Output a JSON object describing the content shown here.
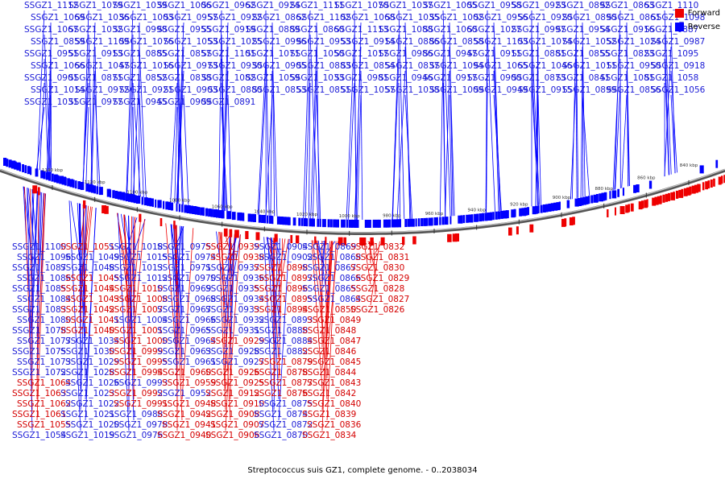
{
  "colors": {
    "forward": "#ee0000",
    "reverse": "#0000ff"
  },
  "legend": [
    {
      "label": "Forward",
      "color": "#ee0000"
    },
    {
      "label": "Reverse",
      "color": "#0000ff"
    }
  ],
  "caption": "Streptococcus suis GZ1, complete genome. - 0..2038034",
  "ticks": [
    "1140 kbp",
    "1120 kbp",
    "1100 kbp",
    "1080 kbp",
    "1060 kbp",
    "1040 kbp",
    "1020 kbp",
    "1000 kbp",
    "980 kbp",
    "960 kbp",
    "940 kbp",
    "920 kbp",
    "900 kbp",
    "880 kbp",
    "860 kbp",
    "840 kbp"
  ],
  "reverse_genes": [
    "SSGZ1_1112",
    "SSGZ1_1079",
    "SSGZ1_1039",
    "SSGZ1_1006",
    "SSGZ1_0962",
    "SSGZ1_0924",
    "SSGZ1_1111",
    "SSGZ1_1070",
    "SSGZ1_1037",
    "SSGZ1_1005",
    "SSGZ1_0958",
    "SSGZ1_0923",
    "SSGZ1_0892",
    "SSGZ1_0863",
    "SSGZ1_1110",
    "SSGZ1_1069",
    "SSGZ1_1036",
    "SSGZ1_1003",
    "SSGZ1_0957",
    "SSGZ1_0922",
    "SSGZ1_0862",
    "SSGZ1_1102",
    "SSGZ1_1068",
    "SSGZ1_1035",
    "SSGZ1_1002",
    "SSGZ1_0956",
    "SSGZ1_0920",
    "SSGZ1_0890",
    "SSGZ1_0861",
    "SSGZ1_1098",
    "SSGZ1_1067",
    "SSGZ1_1032",
    "SSGZ1_0998",
    "SSGZ1_0955",
    "SSGZ1_0919",
    "SSGZ1_0889",
    "SSGZ1_0860",
    "SSGZ1_1113",
    "SSGZ1_1088",
    "SSGZ1_1060",
    "SSGZ1_1027",
    "SSGZ1_0997",
    "SSGZ1_0954",
    "SSGZ1_0916",
    "SSGZ1_0887",
    "SSGZ1_0859",
    "SSGZ1_1109",
    "SSGZ1_1076",
    "SSGZ1_1053",
    "SSGZ1_1025",
    "SSGZ1_0996",
    "SSGZ1_0953",
    "SSGZ1_0914",
    "SSGZ1_0886",
    "SSGZ1_0858",
    "SSGZ1_1103",
    "SSGZ1_1074",
    "SSGZ1_1052",
    "SSGZ1_1024",
    "SSGZ1_0987",
    "SSGZ1_0951",
    "SSGZ1_0913",
    "SSGZ1_0885",
    "SSGZ1_0857",
    "SSGZ1_1101",
    "SSGZ1_1071",
    "SSGZ1_1050",
    "SSGZ1_1017",
    "SSGZ1_0986",
    "SSGZ1_0947",
    "SSGZ1_0911",
    "SSGZ1_0881",
    "SSGZ1_0855",
    "SSGZ1_0823",
    "SSGZ1_1095",
    "SSGZ1_1066",
    "SSGZ1_1047",
    "SSGZ1_1016",
    "SSGZ1_0973",
    "SSGZ1_0930",
    "SSGZ1_0905",
    "SSGZ1_0883",
    "SSGZ1_0854",
    "SSGZ1_0837",
    "SSGZ1_1094",
    "SSGZ1_1065",
    "SSGZ1_1046",
    "SSGZ1_1011",
    "SSGZ1_0950",
    "SSGZ1_0918",
    "SSGZ1_0901",
    "SSGZ1_0871",
    "SSGZ1_0852",
    "SSGZ1_0838",
    "SSGZ1_1082",
    "SSGZ1_1059",
    "SSGZ1_1033",
    "SSGZ1_0981",
    "SSGZ1_0946",
    "SSGZ1_0917",
    "SSGZ1_0900",
    "SSGZ1_0873",
    "SSGZ1_0841",
    "SSGZ1_1081",
    "SSGZ1_1058",
    "SSGZ1_1014",
    "SSGZ1_0972",
    "SSGZ1_0921",
    "SSGZ1_0903",
    "SSGZ1_0880",
    "SSGZ1_0853",
    "SSGZ1_0851",
    "SSGZ1_1057",
    "SSGZ1_1038",
    "SSGZ1_1009",
    "SSGZ1_0949",
    "SSGZ1_0915",
    "SSGZ1_0899",
    "SSGZ1_0856",
    "SSGZ1_1056",
    "SSGZ1_1031",
    "SSGZ1_0977",
    "SSGZ1_0945",
    "SSGZ1_0909",
    "SSGZ1_0891",
    "SSGZ1_0872",
    "SSGZ1_1034",
    "SSGZ1_1012",
    "SSGZ1_0970",
    "SSGZ1_0933",
    "SSGZ1_0904",
    "SSGZ1_1026",
    "SSGZ1_1004",
    "SSGZ1_0961",
    "SSGZ1_0927",
    "SSGZ1_0993",
    "SSGZ1_0952",
    "SSGZ1_1100",
    "SSGZ1_1087",
    "SSGZ1_1096",
    "SSGZ1_1072",
    "SSGZ1_1083",
    "SSGZ1_1084",
    "SSGZ1_1085",
    "SSGZ1_1086",
    "SSGZ1_1073",
    "SSGZ1_1075",
    "SSGZ1_1077",
    "SSGZ1_1078",
    "SSGZ1_1080",
    "SSGZ1_1049",
    "SSGZ1_1048",
    "SSGZ1_1054",
    "SSGZ1_1021",
    "SSGZ1_1013",
    "SSGZ1_1015",
    "SSGZ1_1019",
    "SSGZ1_1018",
    "SSGZ1_1020",
    "SSGZ1_1022",
    "SSGZ1_1023",
    "SSGZ1_1028",
    "SSGZ1_1029",
    "SSGZ1_1030",
    "SSGZ1_0988",
    "SSGZ1_0971",
    "SSGZ1_0963",
    "SSGZ1_0964",
    "SSGZ1_0965",
    "SSGZ1_0966",
    "SSGZ1_0967",
    "SSGZ1_0968",
    "SSGZ1_0969",
    "SSGZ1_0974",
    "SSGZ1_0975",
    "SSGZ1_0976",
    "SSGZ1_0978",
    "SSGZ1_0928",
    "SSGZ1_0931",
    "SSGZ1_0932",
    "SSGZ1_0934",
    "SSGZ1_0935",
    "SSGZ1_0936",
    "SSGZ1_0937",
    "SSGZ1_0869",
    "SSGZ1_0870",
    "SSGZ1_0884",
    "SSGZ1_0888",
    "SSGZ1_0893",
    "SSGZ1_0864",
    "SSGZ1_0865",
    "SSGZ1_0866",
    "SSGZ1_0867",
    "SSGZ1_0868",
    "SSGZ1_0874",
    "SSGZ1_0875",
    "SSGZ1_0902",
    "SSGZ1_0882"
  ],
  "forward_genes": [
    "SSGZ1_1055",
    "SSGZ1_1061",
    "SSGZ1_1062",
    "SSGZ1_1063",
    "SSGZ1_1064",
    "SSGZ1_1042",
    "SSGZ1_1040",
    "SSGZ1_1041",
    "SSGZ1_1043",
    "SSGZ1_1044",
    "SSGZ1_1045",
    "SSGZ1_1051",
    "SSGZ1_1001",
    "SSGZ1_0991",
    "SSGZ1_0992",
    "SSGZ1_0994",
    "SSGZ1_0995",
    "SSGZ1_0999",
    "SSGZ1_1000",
    "SSGZ1_1007",
    "SSGZ1_1008",
    "SSGZ1_1010",
    "SSGZ1_0959",
    "SSGZ1_0960",
    "SSGZ1_0948",
    "SSGZ1_0929",
    "SSGZ1_0925",
    "SSGZ1_0926",
    "SSGZ1_0938",
    "SSGZ1_0939",
    "SSGZ1_0940",
    "SSGZ1_0941",
    "SSGZ1_0942",
    "SSGZ1_0906",
    "SSGZ1_0907",
    "SSGZ1_0908",
    "SSGZ1_0910",
    "SSGZ1_0912",
    "SSGZ1_0894",
    "SSGZ1_0895",
    "SSGZ1_0896",
    "SSGZ1_0897",
    "SSGZ1_0898",
    "SSGZ1_0876",
    "SSGZ1_0877",
    "SSGZ1_0878",
    "SSGZ1_0879",
    "SSGZ1_0850",
    "SSGZ1_0847",
    "SSGZ1_0848",
    "SSGZ1_0849",
    "SSGZ1_0826",
    "SSGZ1_0827",
    "SSGZ1_0828",
    "SSGZ1_0829",
    "SSGZ1_0830",
    "SSGZ1_0831",
    "SSGZ1_0832",
    "SSGZ1_0834",
    "SSGZ1_0836",
    "SSGZ1_0839",
    "SSGZ1_0840",
    "SSGZ1_0842",
    "SSGZ1_0843",
    "SSGZ1_0844",
    "SSGZ1_0845",
    "SSGZ1_0846"
  ]
}
